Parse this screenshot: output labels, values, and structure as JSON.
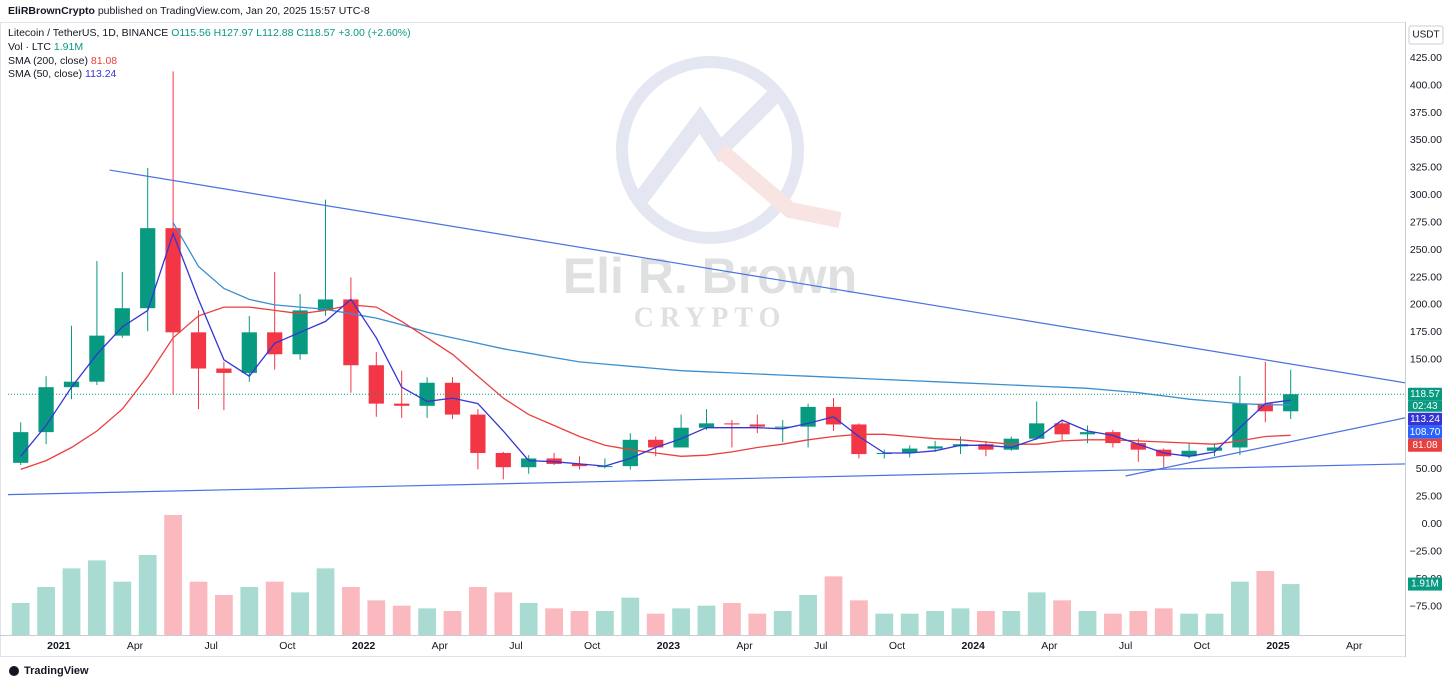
{
  "header": {
    "author": "EliRBrownCrypto",
    "published": "published on TradingView.com, Jan 20, 2025 15:57 UTC-8"
  },
  "footer": "TradingView",
  "watermark": {
    "name": "Eli R. Brown",
    "tagline": "CRYPTO"
  },
  "chart_data": {
    "type": "candlestick",
    "title": "Litecoin / TetherUS, 1D, BINANCE",
    "ohlc_legend": [
      "O115.56",
      "H127.97",
      "L112.88",
      "C118.57",
      "+3.00 (+2.60%)"
    ],
    "currency": "USDT",
    "x": [
      "2020-11",
      "2020-12",
      "2021-01",
      "2021-02",
      "2021-03",
      "2021-04",
      "2021-05",
      "2021-06",
      "2021-07",
      "2021-08",
      "2021-09",
      "2021-10",
      "2021-11",
      "2021-12",
      "2022-01",
      "2022-02",
      "2022-03",
      "2022-04",
      "2022-05",
      "2022-06",
      "2022-07",
      "2022-08",
      "2022-09",
      "2022-10",
      "2022-11",
      "2022-12",
      "2023-01",
      "2023-02",
      "2023-03",
      "2023-04",
      "2023-05",
      "2023-06",
      "2023-07",
      "2023-08",
      "2023-09",
      "2023-10",
      "2023-11",
      "2023-12",
      "2024-01",
      "2024-02",
      "2024-03",
      "2024-04",
      "2024-05",
      "2024-06",
      "2024-07",
      "2024-08",
      "2024-09",
      "2024-10",
      "2024-11",
      "2024-12",
      "2025-01"
    ],
    "open": [
      56,
      84,
      125,
      130,
      172,
      197,
      270,
      175,
      142,
      138,
      175,
      155,
      195,
      205,
      145,
      110,
      108,
      129,
      100,
      65,
      52,
      60,
      55,
      53,
      53,
      77,
      70,
      88,
      92,
      91,
      89,
      89,
      107,
      91,
      64,
      65,
      69,
      71,
      73,
      68,
      78,
      92,
      82,
      84,
      74,
      68,
      62,
      67,
      70,
      110,
      103
    ],
    "high": [
      93,
      135,
      181,
      240,
      230,
      325,
      413,
      195,
      148,
      190,
      230,
      210,
      296,
      225,
      157,
      140,
      134,
      134,
      105,
      66,
      63,
      65,
      62,
      60,
      83,
      80,
      100,
      105,
      95,
      100,
      95,
      110,
      115,
      92,
      68,
      72,
      76,
      80,
      76,
      80,
      112,
      95,
      90,
      86,
      78,
      69,
      74,
      74,
      135,
      148,
      141
    ],
    "low": [
      54,
      73,
      114,
      127,
      170,
      176,
      118,
      105,
      104,
      130,
      141,
      150,
      190,
      120,
      98,
      97,
      97,
      96,
      50,
      41,
      46,
      54,
      50,
      51,
      50,
      62,
      70,
      86,
      70,
      83,
      75,
      70,
      85,
      60,
      60,
      61,
      66,
      64,
      62,
      67,
      77,
      76,
      74,
      70,
      57,
      52,
      60,
      62,
      63,
      93,
      96
    ],
    "close": [
      84,
      125,
      130,
      172,
      197,
      270,
      175,
      142,
      138,
      175,
      155,
      195,
      205,
      145,
      110,
      108,
      129,
      100,
      65,
      52,
      60,
      55,
      53,
      53,
      77,
      70,
      88,
      92,
      91,
      89,
      89,
      107,
      91,
      64,
      65,
      69,
      71,
      73,
      68,
      78,
      92,
      82,
      84,
      74,
      68,
      62,
      67,
      70,
      110,
      103,
      118.57
    ],
    "up_color": "#089981",
    "down_color": "#f23645",
    "series": [
      {
        "name": "SMA (200, close)",
        "color": "#e8403e",
        "values": [
          50,
          58,
          70,
          85,
          105,
          135,
          170,
          190,
          198,
          198,
          195,
          192,
          195,
          200,
          198,
          185,
          170,
          155,
          135,
          115,
          100,
          90,
          80,
          72,
          68,
          65,
          62,
          63,
          66,
          70,
          73,
          77,
          80,
          82,
          82,
          80,
          78,
          77,
          75,
          73,
          73,
          76,
          77,
          77,
          76,
          75,
          74,
          73,
          76,
          80,
          81.08
        ]
      },
      {
        "name": "SMA (50, close)",
        "color": "#3535d6",
        "values": [
          62,
          90,
          125,
          155,
          180,
          195,
          265,
          205,
          150,
          135,
          165,
          175,
          185,
          205,
          170,
          125,
          112,
          115,
          110,
          85,
          58,
          57,
          55,
          53,
          60,
          70,
          78,
          88,
          88,
          88,
          87,
          92,
          98,
          80,
          65,
          65,
          67,
          72,
          72,
          70,
          78,
          95,
          85,
          81,
          73,
          65,
          62,
          66,
          88,
          110,
          113.24
        ]
      }
    ],
    "overlay": {
      "color": "#3a8fd0",
      "values": [
        null,
        null,
        null,
        null,
        null,
        null,
        275,
        235,
        215,
        205,
        200,
        198,
        196,
        192,
        188,
        182,
        175,
        170,
        165,
        160,
        156,
        152,
        148,
        146,
        144,
        142,
        140,
        139,
        138,
        137,
        136,
        135,
        134,
        133,
        132,
        131,
        130,
        129,
        128,
        127,
        126,
        125,
        124,
        122,
        120,
        117,
        114,
        112,
        110,
        109,
        108.7
      ]
    },
    "trendlines": {
      "color": "#4a72e0",
      "lines": [
        {
          "x": [
            "2021-03",
            "2025-06"
          ],
          "y": [
            323,
            129
          ]
        },
        {
          "x": [
            "2020-11",
            "2025-06"
          ],
          "y": [
            27,
            55
          ]
        },
        {
          "x": [
            "2024-07",
            "2025-06"
          ],
          "y": [
            44,
            97
          ]
        }
      ]
    },
    "volume": {
      "title": "Vol · LTC",
      "label": "1.91M",
      "ylim": [
        0,
        6
      ],
      "values": [
        1.2,
        1.8,
        2.5,
        2.8,
        2.0,
        3.0,
        4.5,
        2.0,
        1.5,
        1.8,
        2.0,
        1.6,
        2.5,
        1.8,
        1.3,
        1.1,
        1.0,
        0.9,
        1.8,
        1.6,
        1.2,
        1.0,
        0.9,
        0.9,
        1.4,
        0.8,
        1.0,
        1.1,
        1.2,
        0.8,
        0.9,
        1.5,
        2.2,
        1.3,
        0.8,
        0.8,
        0.9,
        1.0,
        0.9,
        0.9,
        1.6,
        1.3,
        0.9,
        0.8,
        0.9,
        1.0,
        0.8,
        0.8,
        2.0,
        2.4,
        1.91
      ]
    },
    "axis_markers": [
      {
        "value": 118.57,
        "label": "118.57",
        "color": "#089981"
      },
      {
        "value": 113.24,
        "label": "113.24",
        "color": "#3535d6"
      },
      {
        "value": 108.7,
        "label": "108.70",
        "color": "#2962ff"
      },
      {
        "value": 81.08,
        "label": "81.08",
        "color": "#e8403e"
      }
    ],
    "countdown": "02:43",
    "xlim": [
      "2020-11",
      "2025-06"
    ],
    "ylim": [
      -101,
      458
    ],
    "xticks": [
      {
        "value": "2021-01",
        "label": "2021"
      },
      {
        "value": "2021-04",
        "label": "Apr"
      },
      {
        "value": "2021-07",
        "label": "Jul"
      },
      {
        "value": "2021-10",
        "label": "Oct"
      },
      {
        "value": "2022-01",
        "label": "2022"
      },
      {
        "value": "2022-04",
        "label": "Apr"
      },
      {
        "value": "2022-07",
        "label": "Jul"
      },
      {
        "value": "2022-10",
        "label": "Oct"
      },
      {
        "value": "2023-01",
        "label": "2023"
      },
      {
        "value": "2023-04",
        "label": "Apr"
      },
      {
        "value": "2023-07",
        "label": "Jul"
      },
      {
        "value": "2023-10",
        "label": "Oct"
      },
      {
        "value": "2024-01",
        "label": "2024"
      },
      {
        "value": "2024-04",
        "label": "Apr"
      },
      {
        "value": "2024-07",
        "label": "Jul"
      },
      {
        "value": "2024-10",
        "label": "Oct"
      },
      {
        "value": "2025-01",
        "label": "2025"
      },
      {
        "value": "2025-04",
        "label": "Apr"
      }
    ],
    "yticks": [
      {
        "value": 425,
        "label": "425.00"
      },
      {
        "value": 400,
        "label": "400.00"
      },
      {
        "value": 375,
        "label": "375.00"
      },
      {
        "value": 350,
        "label": "350.00"
      },
      {
        "value": 325,
        "label": "325.00"
      },
      {
        "value": 300,
        "label": "300.00"
      },
      {
        "value": 275,
        "label": "275.00"
      },
      {
        "value": 250,
        "label": "250.00"
      },
      {
        "value": 225,
        "label": "225.00"
      },
      {
        "value": 200,
        "label": "200.00"
      },
      {
        "value": 175,
        "label": "175.00"
      },
      {
        "value": 150,
        "label": "150.00"
      },
      {
        "value": 50,
        "label": "50.00"
      },
      {
        "value": 25,
        "label": "25.00"
      },
      {
        "value": 0,
        "label": "0.00"
      },
      {
        "value": -25,
        "label": "−25.00"
      },
      {
        "value": -50,
        "label": "−50.00"
      },
      {
        "value": -75,
        "label": "−75.00"
      }
    ],
    "grid": false
  }
}
